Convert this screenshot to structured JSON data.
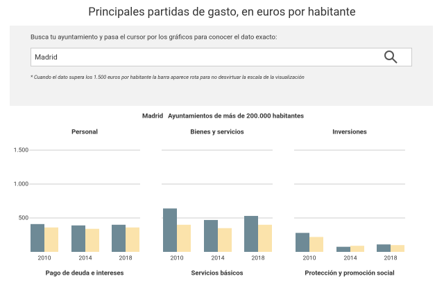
{
  "title": "Principales partidas de gasto, en euros por habitante",
  "search_prompt": "Busca tu ayuntamiento y pasa el cursor por los gráficos para conocer el dato exacto:",
  "search_value": "Madrid",
  "note": "* Cuando el dato supera los 1.500 euros por habitante la barra aparece rota para no desvirtuar la escala de la visualización",
  "legend": [
    {
      "name": "Madrid",
      "color": "#6e8a96",
      "text_color": "#4f6f7c"
    },
    {
      "name": "Ayuntamientos de más de 200.000 habitantes",
      "color": "#fbe3ab",
      "text_color": "#f0c04e"
    }
  ],
  "chart_data": [
    {
      "type": "bar",
      "title": "Personal",
      "categories": [
        "2010",
        "2014",
        "2018"
      ],
      "series": [
        {
          "values": [
            410,
            390,
            400
          ]
        },
        {
          "values": [
            360,
            340,
            360
          ]
        }
      ],
      "ylim": [
        0,
        1500
      ],
      "yticks": [
        500,
        {
          "value": 1000,
          "label": "1.000"
        },
        {
          "value": 1500,
          "label": "1.500"
        }
      ],
      "grid": true
    },
    {
      "type": "bar",
      "title": "Bienes y servicios",
      "categories": [
        "2010",
        "2014",
        "2018"
      ],
      "series": [
        {
          "values": [
            640,
            470,
            530
          ]
        },
        {
          "values": [
            400,
            350,
            400
          ]
        }
      ],
      "ylim": [
        0,
        1500
      ],
      "gridlines": [
        500,
        1000,
        1500
      ],
      "grid": true
    },
    {
      "type": "bar",
      "title": "Inversiones",
      "categories": [
        "2010",
        "2014",
        "2018"
      ],
      "series": [
        {
          "values": [
            280,
            75,
            110
          ]
        },
        {
          "values": [
            220,
            90,
            100
          ]
        }
      ],
      "ylim": [
        0,
        1500
      ],
      "gridlines": [
        500,
        1000,
        1500
      ],
      "grid": true
    }
  ],
  "next_titles": [
    "Pago de deuda e intereses",
    "Servicios básicos",
    "Protección y promoción social"
  ]
}
